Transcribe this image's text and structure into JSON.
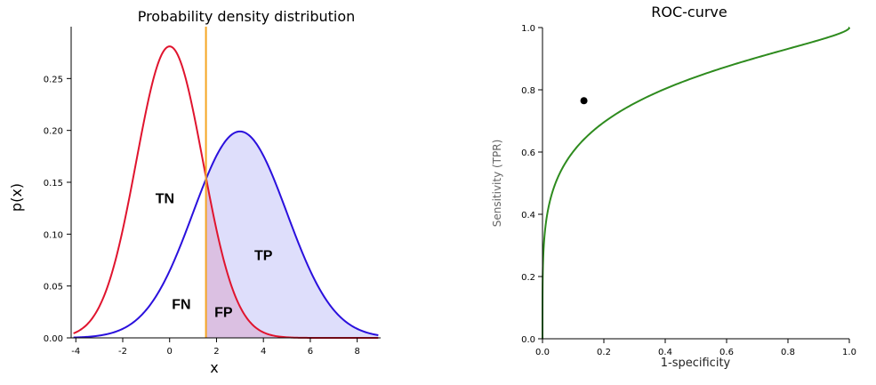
{
  "colors": {
    "negative_curve": "#e0142e",
    "positive_curve": "#2a10dd",
    "threshold": "#f5a623",
    "tp_fill": "#c8c8f8",
    "fp_fill": "#d9b6d9",
    "roc_curve": "#2e8b1e",
    "operating_point": "#000000"
  },
  "chart_data": [
    {
      "type": "line",
      "title": "Probability density distribution",
      "xlabel": "x",
      "ylabel": "p(x)",
      "xlim": [
        -4.2,
        9.0
      ],
      "ylim": [
        0,
        0.3
      ],
      "xticks": [
        -4,
        -2,
        0,
        2,
        4,
        6,
        8
      ],
      "xtick_labels": [
        "-4",
        "-2",
        "0",
        "2",
        "4",
        "6",
        "8"
      ],
      "yticks": [
        0,
        0.05,
        0.1,
        0.15,
        0.2,
        0.25
      ],
      "ytick_labels": [
        "0.00",
        "0.05",
        "0.10",
        "0.15",
        "0.20",
        "0.25"
      ],
      "series": [
        {
          "distribution": "normal",
          "mean": 0,
          "sd": 1.42,
          "peak": 0.281
        },
        {
          "distribution": "normal",
          "mean": 3,
          "sd": 2.0,
          "peak": 0.199
        }
      ],
      "threshold": 1.55,
      "annotations": [
        {
          "text": "TN",
          "x": -0.2,
          "y": 0.13
        },
        {
          "text": "TP",
          "x": 4.0,
          "y": 0.075
        },
        {
          "text": "FN",
          "x": 0.5,
          "y": 0.028
        },
        {
          "text": "FP",
          "x": 2.3,
          "y": 0.02
        }
      ],
      "grid": false,
      "legend": "none"
    },
    {
      "type": "line",
      "title": "ROC-curve",
      "xlabel": "1-specificity",
      "ylabel": "Sensitivity (TPR)",
      "xlim": [
        0,
        1
      ],
      "ylim": [
        0,
        1
      ],
      "xticks": [
        0,
        0.2,
        0.4,
        0.6,
        0.8,
        1.0
      ],
      "xtick_labels": [
        "0.0",
        "0.2",
        "0.4",
        "0.6",
        "0.8",
        "1.0"
      ],
      "yticks": [
        0,
        0.2,
        0.4,
        0.6,
        0.8,
        1.0
      ],
      "ytick_labels": [
        "0.0",
        "0.2",
        "0.4",
        "0.6",
        "0.8",
        "1.0"
      ],
      "operating_point": {
        "x": 0.135,
        "y": 0.765
      },
      "grid": false,
      "legend": "none"
    }
  ]
}
